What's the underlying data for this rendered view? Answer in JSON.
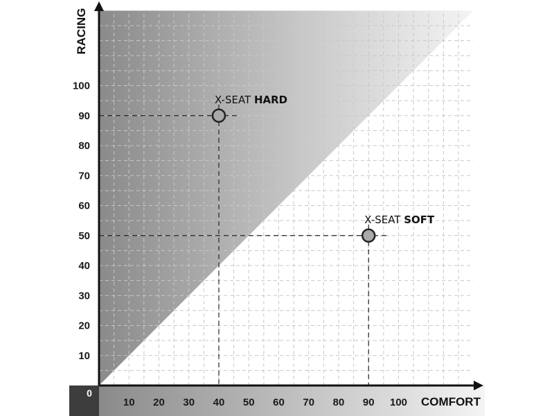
{
  "chart_data": {
    "type": "scatter",
    "xlabel": "COMFORT",
    "ylabel": "RACING",
    "origin_label": "0",
    "xlim": [
      0,
      125
    ],
    "ylim": [
      0,
      125
    ],
    "x_ticks": [
      10,
      20,
      30,
      40,
      50,
      60,
      70,
      80,
      90,
      100
    ],
    "y_ticks": [
      10,
      20,
      30,
      40,
      50,
      60,
      70,
      80,
      90,
      100
    ],
    "grid": true,
    "points": [
      {
        "x": 40,
        "y": 90,
        "label_prefix": "X-SEAT ",
        "label_bold": "HARD"
      },
      {
        "x": 90,
        "y": 50,
        "label_prefix": "X-SEAT ",
        "label_bold": "SOFT"
      }
    ],
    "colors": {
      "point_fill": "#a9a9a9",
      "point_stroke": "#222222",
      "axis": "#111111",
      "grid": "#c8c8c8",
      "shade_dark": "#888888",
      "shade_light": "#f2f2f2"
    }
  }
}
